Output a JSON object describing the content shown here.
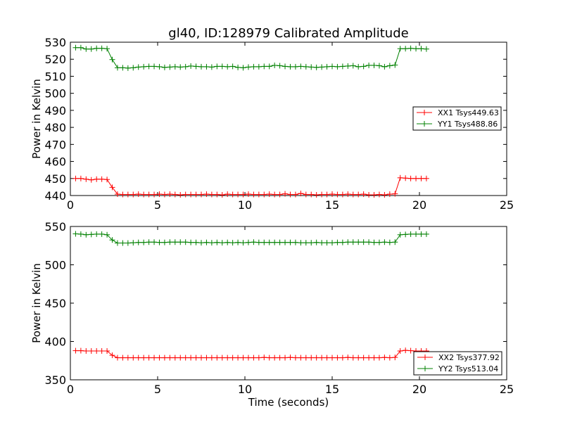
{
  "figure_title": "gl40, ID:128979 Calibrated Amplitude",
  "chart_data": [
    {
      "type": "line",
      "title": "gl40, ID:128979 Calibrated Amplitude",
      "xlabel": "",
      "ylabel": "Power in Kelvin",
      "xlim": [
        0,
        25
      ],
      "ylim": [
        440,
        530
      ],
      "xticks": [
        "0",
        "5",
        "10",
        "15",
        "20",
        "25"
      ],
      "yticks": [
        "440",
        "450",
        "460",
        "470",
        "480",
        "490",
        "500",
        "510",
        "520",
        "530"
      ],
      "legend_position": "center-right",
      "grid": false,
      "x": [
        0.3,
        0.6,
        0.9,
        1.2,
        1.5,
        1.8,
        2.1,
        2.4,
        2.7,
        3.0,
        3.3,
        3.6,
        3.9,
        4.2,
        4.5,
        4.8,
        5.1,
        5.4,
        5.7,
        6.0,
        6.3,
        6.6,
        6.9,
        7.2,
        7.5,
        7.8,
        8.1,
        8.4,
        8.7,
        9.0,
        9.3,
        9.6,
        9.9,
        10.2,
        10.5,
        10.8,
        11.1,
        11.4,
        11.7,
        12.0,
        12.3,
        12.6,
        12.9,
        13.2,
        13.5,
        13.8,
        14.1,
        14.4,
        14.7,
        15.0,
        15.3,
        15.6,
        15.9,
        16.2,
        16.5,
        16.8,
        17.1,
        17.4,
        17.7,
        18.0,
        18.3,
        18.6,
        18.9,
        19.2,
        19.5,
        19.8,
        20.1,
        20.4
      ],
      "series": [
        {
          "name": "XX1 Tsys449.63",
          "color": "#ff0000",
          "values": [
            450,
            450,
            449.6,
            449.2,
            449.6,
            449.6,
            449.4,
            444.8,
            440.8,
            440.6,
            440.6,
            440.6,
            440.8,
            440.6,
            440.6,
            440.6,
            440.8,
            440.6,
            440.8,
            440.6,
            440.4,
            440.6,
            440.6,
            440.6,
            440.6,
            440.8,
            440.6,
            440.6,
            440.4,
            440.8,
            440.6,
            440.6,
            440.6,
            440.8,
            440.6,
            440.6,
            440.6,
            440.8,
            440.6,
            440.6,
            441,
            440.6,
            440.6,
            441.2,
            440.6,
            440.6,
            440.4,
            440.6,
            440.6,
            440.8,
            440.6,
            440.6,
            440.8,
            440.6,
            440.6,
            440.8,
            440.4,
            440.4,
            440.6,
            440.4,
            440.8,
            441,
            450.4,
            450.2,
            450,
            450,
            450,
            450
          ]
        },
        {
          "name": "YY1 Tsys488.86",
          "color": "#008000",
          "values": [
            526.8,
            526.8,
            526,
            526,
            526.4,
            526.4,
            526.2,
            519.8,
            515,
            515,
            514.8,
            515,
            515.4,
            515.6,
            515.8,
            515.8,
            515.6,
            515.2,
            515.4,
            515.6,
            515.4,
            515.6,
            516,
            515.8,
            515.6,
            515.6,
            515.4,
            515.8,
            515.8,
            515.6,
            515.8,
            515.2,
            515,
            515.4,
            515.6,
            515.6,
            515.8,
            515.8,
            516.4,
            516.2,
            515.8,
            515.6,
            515.6,
            515.8,
            515.6,
            515.4,
            515.2,
            515.4,
            515.6,
            515.8,
            515.6,
            515.8,
            516,
            516.2,
            515.6,
            515.8,
            516.4,
            516.4,
            516.2,
            515.6,
            516.2,
            516.6,
            526.2,
            526.2,
            526.4,
            526.2,
            526.2,
            526
          ]
        }
      ]
    },
    {
      "type": "line",
      "title": "",
      "xlabel": "Time (seconds)",
      "ylabel": "Power in Kelvin",
      "xlim": [
        0,
        25
      ],
      "ylim": [
        350,
        550
      ],
      "xticks": [
        "0",
        "5",
        "10",
        "15",
        "20",
        "25"
      ],
      "yticks": [
        "350",
        "400",
        "450",
        "500",
        "550"
      ],
      "legend_position": "lower-right",
      "grid": false,
      "x": [
        0.3,
        0.6,
        0.9,
        1.2,
        1.5,
        1.8,
        2.1,
        2.4,
        2.7,
        3.0,
        3.3,
        3.6,
        3.9,
        4.2,
        4.5,
        4.8,
        5.1,
        5.4,
        5.7,
        6.0,
        6.3,
        6.6,
        6.9,
        7.2,
        7.5,
        7.8,
        8.1,
        8.4,
        8.7,
        9.0,
        9.3,
        9.6,
        9.9,
        10.2,
        10.5,
        10.8,
        11.1,
        11.4,
        11.7,
        12.0,
        12.3,
        12.6,
        12.9,
        13.2,
        13.5,
        13.8,
        14.1,
        14.4,
        14.7,
        15.0,
        15.3,
        15.6,
        15.9,
        16.2,
        16.5,
        16.8,
        17.1,
        17.4,
        17.7,
        18.0,
        18.3,
        18.6,
        18.9,
        19.2,
        19.5,
        19.8,
        20.1,
        20.4
      ],
      "series": [
        {
          "name": "XX2 Tsys377.92",
          "color": "#ff0000",
          "values": [
            388,
            388,
            387.6,
            387.6,
            387.6,
            387.6,
            387.6,
            382,
            378.8,
            378.8,
            378.8,
            378.8,
            378.8,
            378.8,
            378.8,
            378.8,
            378.8,
            378.8,
            378.8,
            378.8,
            378.8,
            378.8,
            378.8,
            378.8,
            378.8,
            378.8,
            378.8,
            378.8,
            378.8,
            378.8,
            378.8,
            378.8,
            378.8,
            378.8,
            378.8,
            378.8,
            379.2,
            378.8,
            378.8,
            378.8,
            378.8,
            379.2,
            378.8,
            378.8,
            378.8,
            378.8,
            378.8,
            378.8,
            378.8,
            378.8,
            378.8,
            378.8,
            379.2,
            378.8,
            378.8,
            378.8,
            378.8,
            378.8,
            378.8,
            379.2,
            378.8,
            379.2,
            387.6,
            388.4,
            388,
            387.6,
            387.6,
            387.6
          ]
        },
        {
          "name": "YY2 Tsys513.04",
          "color": "#008000",
          "values": [
            540.4,
            540,
            539.2,
            539.6,
            540,
            540,
            539.2,
            532.4,
            528.4,
            528.4,
            528.4,
            528.8,
            529.2,
            529.2,
            529.6,
            529.6,
            529.2,
            529.2,
            529.6,
            529.6,
            529.6,
            529.6,
            529.2,
            529.2,
            528.8,
            529.2,
            528.8,
            529.2,
            528.8,
            529.2,
            528.8,
            529.2,
            528.8,
            529.2,
            529.6,
            529.2,
            529.2,
            529.2,
            529.2,
            529.2,
            529.2,
            529.2,
            529.2,
            528.8,
            528.8,
            528.8,
            529.2,
            528.8,
            528.8,
            528.8,
            529.2,
            529.2,
            529.6,
            529.6,
            529.6,
            529.6,
            529.6,
            529.2,
            529.2,
            529.6,
            529.2,
            529.6,
            539.2,
            539.6,
            540,
            540,
            540,
            540
          ]
        }
      ]
    }
  ]
}
